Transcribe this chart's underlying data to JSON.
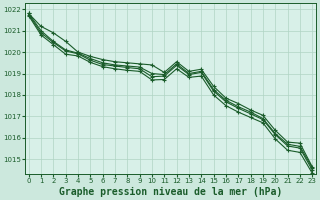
{
  "bg_color": "#cce8dd",
  "plot_bg_color": "#d8f0e8",
  "grid_color": "#b0d4c4",
  "line_color": "#1a5c2a",
  "title": "Graphe pression niveau de la mer (hPa)",
  "ylim": [
    1014.3,
    1022.3
  ],
  "xlim": [
    -0.3,
    23.3
  ],
  "yticks": [
    1015,
    1016,
    1017,
    1018,
    1019,
    1020,
    1021,
    1022
  ],
  "xticks": [
    0,
    1,
    2,
    3,
    4,
    5,
    6,
    7,
    8,
    9,
    10,
    11,
    12,
    13,
    14,
    15,
    16,
    17,
    18,
    19,
    20,
    21,
    22,
    23
  ],
  "series": [
    [
      1021.8,
      1021.2,
      1020.9,
      1020.5,
      1020.0,
      1019.8,
      1019.65,
      1019.55,
      1019.5,
      1019.45,
      1019.4,
      1019.05,
      1019.55,
      1019.1,
      1019.2,
      1018.4,
      1017.85,
      1017.6,
      1017.3,
      1017.05,
      1016.35,
      1015.8,
      1015.75,
      1014.65
    ],
    [
      1021.8,
      1021.0,
      1020.5,
      1020.1,
      1019.95,
      1019.7,
      1019.5,
      1019.4,
      1019.35,
      1019.3,
      1019.0,
      1018.95,
      1019.45,
      1019.0,
      1019.1,
      1018.25,
      1017.75,
      1017.45,
      1017.2,
      1016.9,
      1016.2,
      1015.7,
      1015.6,
      1014.6
    ],
    [
      1021.75,
      1020.9,
      1020.45,
      1020.05,
      1019.92,
      1019.62,
      1019.42,
      1019.35,
      1019.28,
      1019.22,
      1018.85,
      1018.88,
      1019.38,
      1018.95,
      1019.05,
      1018.18,
      1017.68,
      1017.38,
      1017.12,
      1016.85,
      1016.15,
      1015.62,
      1015.52,
      1014.5
    ],
    [
      1021.7,
      1020.8,
      1020.35,
      1019.9,
      1019.82,
      1019.52,
      1019.32,
      1019.22,
      1019.15,
      1019.1,
      1018.7,
      1018.72,
      1019.22,
      1018.82,
      1018.88,
      1018.0,
      1017.5,
      1017.2,
      1016.95,
      1016.7,
      1015.95,
      1015.42,
      1015.32,
      1014.35
    ]
  ],
  "title_fontsize": 7,
  "tick_fontsize": 5,
  "title_fontfamily": "monospace"
}
